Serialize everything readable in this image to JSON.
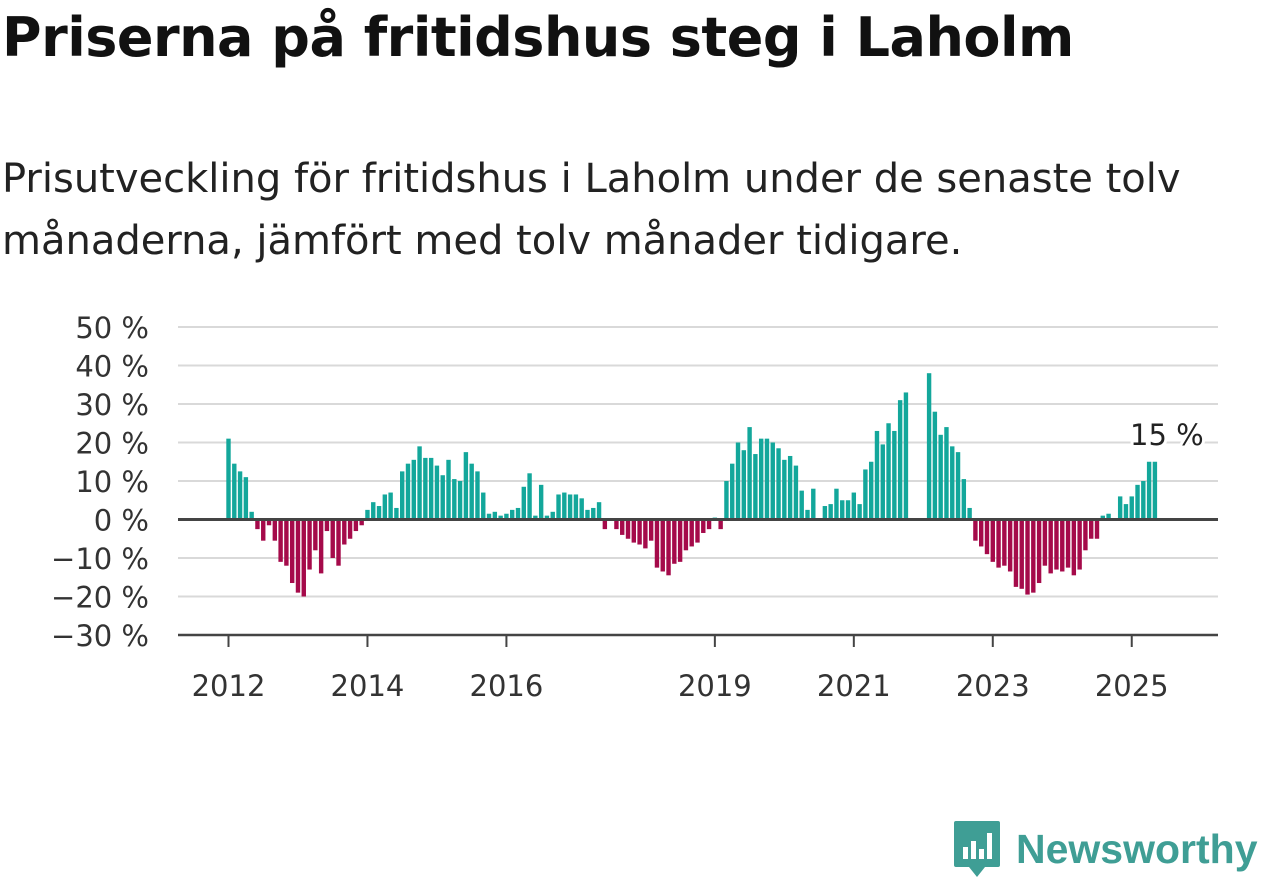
{
  "title": "Priserna på fritidshus steg i Laholm",
  "subtitle": "Prisutveckling för fritidshus i Laholm under de senaste tolv månaderna, jämfört med tolv månader tidigare.",
  "brand": {
    "name": "Newsworthy",
    "icon": "newsworthy-logo-icon",
    "color": "#3f9e95"
  },
  "chart_data": {
    "type": "bar",
    "x_unit": "month",
    "x_start": "2012-01",
    "y_unit": "%",
    "ylim": [
      -30,
      50
    ],
    "y_ticks": [
      50,
      40,
      30,
      20,
      10,
      0,
      -10,
      -20,
      -30
    ],
    "y_tick_labels": [
      "50 %",
      "40 %",
      "30 %",
      "20 %",
      "10 %",
      "0 %",
      "−10 %",
      "−20 %",
      "−30 %"
    ],
    "x_tick_labels": [
      {
        "label": "2012",
        "date": "2012-01"
      },
      {
        "label": "2014",
        "date": "2014-01"
      },
      {
        "label": "2016",
        "date": "2016-01"
      },
      {
        "label": "2019",
        "date": "2019-01"
      },
      {
        "label": "2021",
        "date": "2021-01"
      },
      {
        "label": "2023",
        "date": "2023-01"
      },
      {
        "label": "2025",
        "date": "2025-01"
      }
    ],
    "grid": true,
    "colors": {
      "positive": "#13a79b",
      "negative": "#a50a4a"
    },
    "annotation": {
      "text": "15 %",
      "date": "2025-06",
      "value": 15
    },
    "values": [
      21,
      14.5,
      12.5,
      11,
      2,
      -2.5,
      -5.5,
      -1.5,
      -5.5,
      -11,
      -12,
      -16.5,
      -19,
      -20,
      -13,
      -8,
      -14,
      -3,
      -10,
      -12,
      -6.5,
      -5,
      -3,
      -1.5,
      2.5,
      4.5,
      3.5,
      6.5,
      7,
      3,
      12.5,
      14.5,
      15.5,
      19,
      16,
      16,
      14,
      11.5,
      15.5,
      10.5,
      10,
      17.5,
      14.5,
      12.5,
      7,
      1.5,
      2,
      1,
      1.5,
      2.5,
      3,
      8.5,
      12,
      1,
      9,
      1,
      2,
      6.5,
      7,
      6.5,
      6.5,
      5.5,
      2.5,
      3,
      4.5,
      -2.5,
      0,
      -2.5,
      -4,
      -5,
      -6,
      -6.5,
      -7.5,
      -5.5,
      -12.5,
      -13.5,
      -14.5,
      -11.5,
      -11,
      -8,
      -7,
      -6,
      -3.5,
      -2.5,
      0.5,
      -2.5,
      10,
      14.5,
      20,
      18,
      24,
      17,
      21,
      21,
      20,
      18.5,
      15.5,
      16.5,
      14,
      7.5,
      2.5,
      8,
      0,
      3.5,
      4,
      8,
      5,
      5,
      7,
      4,
      13,
      15,
      23,
      19.5,
      25,
      23,
      31,
      33,
      0,
      0,
      0,
      38,
      28,
      22,
      24,
      19,
      17.5,
      10.5,
      3,
      -5.5,
      -7,
      -9,
      -11,
      -12.5,
      -12,
      -13.5,
      -17.5,
      -18,
      -19.5,
      -19,
      -16.5,
      -12,
      -14,
      -13,
      -13.5,
      -12.5,
      -14.5,
      -13,
      -8,
      -5,
      -5,
      1,
      1.5,
      0,
      6,
      4,
      6,
      9,
      10,
      15,
      15
    ]
  }
}
